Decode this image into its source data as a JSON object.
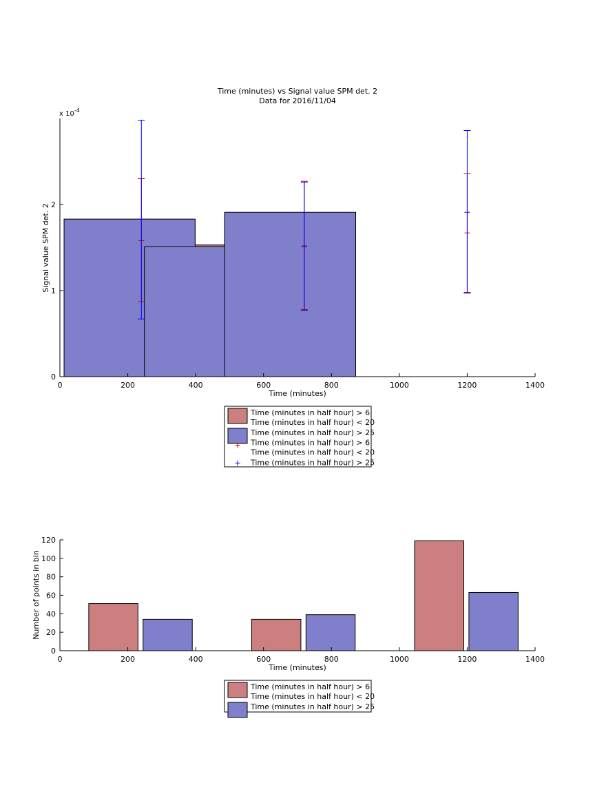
{
  "chart_data": [
    {
      "type": "bar",
      "title": "Time (minutes) vs Signal value SPM det. 2",
      "subtitle": "Data for 2016/11/04",
      "xlabel": "Time (minutes)",
      "ylabel": "Signal value SPM det. 2",
      "y_exponent": "x 10",
      "y_exponent_power": "-4",
      "xlim": [
        0,
        1400
      ],
      "ylim": [
        0,
        3
      ],
      "xticks": [
        "0",
        "200",
        "400",
        "600",
        "800",
        "1000",
        "1200",
        "1400"
      ],
      "yticks": [
        "0",
        "1",
        "2"
      ],
      "grid": false,
      "legend_position": "below",
      "colors": {
        "red": "#cc7f7f",
        "blue": "#7f7fcc",
        "blue_err": "#0000ff",
        "red_err": "#cc0000"
      },
      "categories": [
        240,
        720,
        1200
      ],
      "series": [
        {
          "name": "Time (minutes in half hour) > 6\nTime (minutes in half hour) < 20",
          "values": [
            1.83,
            1.53,
            1.9
          ],
          "error_center": [
            1.58,
            1.52,
            1.67
          ],
          "error_low": [
            0.87,
            0.78,
            0.98
          ],
          "error_high": [
            2.3,
            2.27,
            2.36
          ]
        },
        {
          "name": "Time (minutes in half hour) > 25",
          "values": [
            1.83,
            1.51,
            1.91
          ],
          "error_center": [
            1.83,
            1.51,
            1.91
          ],
          "error_low": [
            0.67,
            0.77,
            0.97
          ],
          "error_high": [
            2.98,
            2.26,
            2.86
          ]
        }
      ],
      "legend": [
        {
          "kind": "bar",
          "color": "red",
          "line1": "Time (minutes in half hour) > 6",
          "line2": "Time (minutes in half hour) < 20"
        },
        {
          "kind": "bar",
          "color": "blue",
          "line1": "Time (minutes in half hour) > 25",
          "line2": ""
        },
        {
          "kind": "marker",
          "color": "red_err",
          "line1": "Time (minutes in half hour) > 6",
          "line2": "Time (minutes in half hour) < 20"
        },
        {
          "kind": "marker",
          "color": "blue_err",
          "line1": "Time (minutes in half hour) > 25",
          "line2": ""
        }
      ]
    },
    {
      "type": "bar",
      "title": "",
      "xlabel": "Time (minutes)",
      "ylabel": "Number of points in bin",
      "xlim": [
        0,
        1400
      ],
      "ylim": [
        0,
        120
      ],
      "xticks": [
        "0",
        "200",
        "400",
        "600",
        "800",
        "1000",
        "1200",
        "1400"
      ],
      "yticks": [
        "0",
        "20",
        "40",
        "60",
        "80",
        "100",
        "120"
      ],
      "grid": false,
      "legend_position": "below",
      "bars": [
        {
          "series": 0,
          "x0": 85,
          "x1": 230,
          "value": 51
        },
        {
          "series": 1,
          "x0": 245,
          "x1": 390,
          "value": 34
        },
        {
          "series": 0,
          "x0": 565,
          "x1": 710,
          "value": 34
        },
        {
          "series": 1,
          "x0": 725,
          "x1": 870,
          "value": 39
        },
        {
          "series": 0,
          "x0": 1045,
          "x1": 1190,
          "value": 119
        },
        {
          "series": 1,
          "x0": 1205,
          "x1": 1350,
          "value": 63
        }
      ],
      "series": [
        {
          "name": "Time (minutes in half hour) > 6\nTime (minutes in half hour) < 20",
          "color": "red"
        },
        {
          "name": "Time (minutes in half hour) > 25",
          "color": "blue"
        }
      ],
      "legend": [
        {
          "kind": "bar",
          "color": "red",
          "line1": "Time (minutes in half hour) > 6",
          "line2": "Time (minutes in half hour) < 20"
        },
        {
          "kind": "bar",
          "color": "blue",
          "line1": "Time (minutes in half hour) > 25",
          "line2": ""
        }
      ]
    }
  ]
}
